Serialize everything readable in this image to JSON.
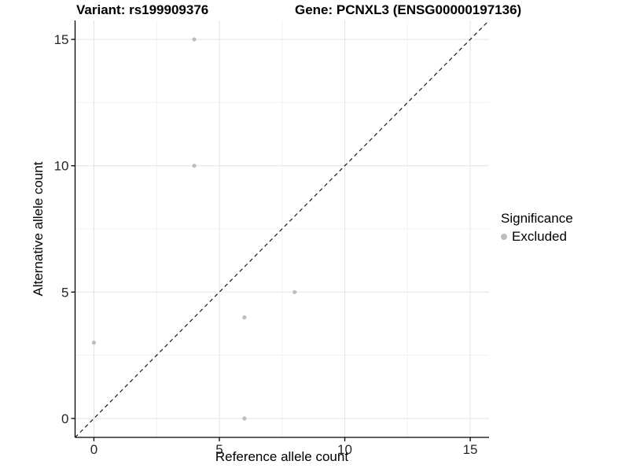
{
  "chart_data": {
    "type": "scatter",
    "title_left": "Variant: rs199909376",
    "title_right": "Gene: PCNXL3 (ENSG00000197136)",
    "xlabel": "Reference allele count",
    "ylabel": "Alternative allele count",
    "x_ticks": [
      0,
      5,
      10,
      15
    ],
    "y_ticks": [
      0,
      5,
      10,
      15
    ],
    "minor_ticks": [
      2.5,
      7.5,
      12.5
    ],
    "xlim": [
      -0.75,
      15.75
    ],
    "ylim": [
      -0.75,
      15.75
    ],
    "grid": "major+minor",
    "series": [
      {
        "name": "Excluded",
        "color": "#bdbdbd",
        "points": [
          {
            "x": 4,
            "y": 15
          },
          {
            "x": 4,
            "y": 10
          },
          {
            "x": 8,
            "y": 5
          },
          {
            "x": 6,
            "y": 4
          },
          {
            "x": 0,
            "y": 3
          },
          {
            "x": 6,
            "y": 0
          }
        ]
      }
    ],
    "reference_line": {
      "type": "identity",
      "slope": 1,
      "intercept": 0,
      "style": "dashed",
      "color": "#1a1a1a"
    },
    "legend": {
      "title": "Significance",
      "position": "right",
      "items": [
        {
          "label": "Excluded",
          "marker": "circle",
          "color": "#bdbdbd"
        }
      ]
    },
    "colors": {
      "background": "#ffffff",
      "grid_major": "#e3e3e3",
      "grid_minor": "#f1f1f1",
      "axis_line": "#000000",
      "tick_label": "#262626",
      "point": "#bdbdbd"
    }
  }
}
